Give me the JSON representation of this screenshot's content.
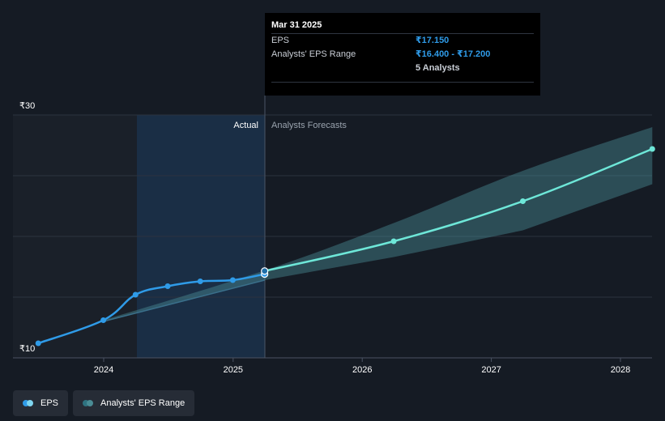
{
  "chart_data": {
    "type": "line",
    "y_tick_labels": [
      "₹30",
      "₹10"
    ],
    "ylim": [
      10,
      30
    ],
    "x_tick_labels": [
      "2024",
      "2025",
      "2026",
      "2027",
      "2028"
    ],
    "region_labels": {
      "actual": "Actual",
      "forecast": "Analysts Forecasts"
    },
    "series": [
      {
        "name": "EPS",
        "color": "#2f9be8",
        "points": [
          {
            "x": "2023-06-30",
            "y": 11.2
          },
          {
            "x": "2023-12-31",
            "y": 13.1
          },
          {
            "x": "2024-03-31",
            "y": 15.2
          },
          {
            "x": "2024-06-30",
            "y": 15.9
          },
          {
            "x": "2024-09-30",
            "y": 16.3
          },
          {
            "x": "2024-12-31",
            "y": 16.4
          },
          {
            "x": "2025-03-31",
            "y": 16.9
          }
        ]
      },
      {
        "name": "EPS forecast",
        "color": "#6ee7d8",
        "points": [
          {
            "x": "2025-03-31",
            "y": 17.15
          },
          {
            "x": "2026-03-31",
            "y": 19.6
          },
          {
            "x": "2027-03-31",
            "y": 22.9
          },
          {
            "x": "2028-03-31",
            "y": 27.2
          }
        ]
      },
      {
        "name": "Analysts' EPS Range",
        "color": "#4a8c95",
        "points": [
          {
            "x": "2023-12-31",
            "low": 13.0,
            "high": 13.1
          },
          {
            "x": "2025-03-31",
            "low": 16.4,
            "high": 17.2
          },
          {
            "x": "2026-03-31",
            "low": 18.3,
            "high": 21.1
          },
          {
            "x": "2027-03-31",
            "low": 20.5,
            "high": 25.4
          },
          {
            "x": "2028-03-31",
            "low": 24.3,
            "high": 29.0
          }
        ]
      }
    ]
  },
  "tooltip": {
    "date": "Mar 31 2025",
    "eps_label": "EPS",
    "eps_value": "₹17.150",
    "range_label": "Analysts' EPS Range",
    "range_value": "₹16.400 - ₹17.200",
    "analysts": "5 Analysts"
  },
  "legend": [
    {
      "label": "EPS",
      "colors": [
        "#2f9be8",
        "#7fd6f0"
      ]
    },
    {
      "label": "Analysts' EPS Range",
      "colors": [
        "#2e7280",
        "#4a8c95"
      ]
    }
  ]
}
